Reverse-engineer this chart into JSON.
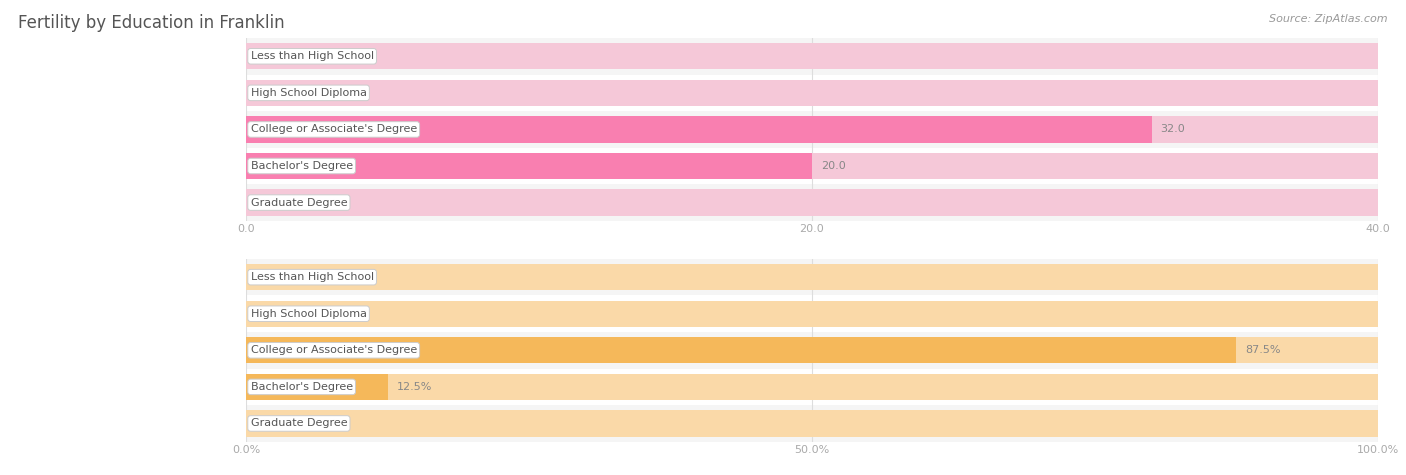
{
  "title": "Fertility by Education in Franklin",
  "source_text": "Source: ZipAtlas.com",
  "top_chart": {
    "categories": [
      "Less than High School",
      "High School Diploma",
      "College or Associate's Degree",
      "Bachelor's Degree",
      "Graduate Degree"
    ],
    "values": [
      0.0,
      0.0,
      32.0,
      20.0,
      0.0
    ],
    "xlim": [
      0,
      40
    ],
    "xticks": [
      0.0,
      20.0,
      40.0
    ],
    "xtick_labels": [
      "0.0",
      "20.0",
      "40.0"
    ],
    "bar_color": "#f97fb0",
    "bar_bg_color": "#f5c8d8",
    "row_bg_even": "#f5f5f5",
    "row_bg_odd": "#ffffff",
    "bar_height": 0.72
  },
  "bottom_chart": {
    "categories": [
      "Less than High School",
      "High School Diploma",
      "College or Associate's Degree",
      "Bachelor's Degree",
      "Graduate Degree"
    ],
    "values": [
      0.0,
      0.0,
      87.5,
      12.5,
      0.0
    ],
    "xlim": [
      0,
      100
    ],
    "xticks": [
      0.0,
      50.0,
      100.0
    ],
    "xtick_labels": [
      "0.0%",
      "50.0%",
      "100.0%"
    ],
    "bar_color": "#f5b85a",
    "bar_bg_color": "#fad9a8",
    "row_bg_even": "#f5f5f5",
    "row_bg_odd": "#ffffff",
    "bar_height": 0.72
  },
  "title_color": "#555555",
  "title_fontsize": 12,
  "source_fontsize": 8,
  "source_color": "#999999",
  "label_fontsize": 8,
  "value_fontsize": 8,
  "axis_tick_fontsize": 8,
  "axis_tick_color": "#aaaaaa",
  "grid_color": "#dddddd",
  "label_text_color": "#555555",
  "value_text_color": "#888888",
  "label_box_facecolor": "#ffffff",
  "label_box_edgecolor": "#cccccc"
}
